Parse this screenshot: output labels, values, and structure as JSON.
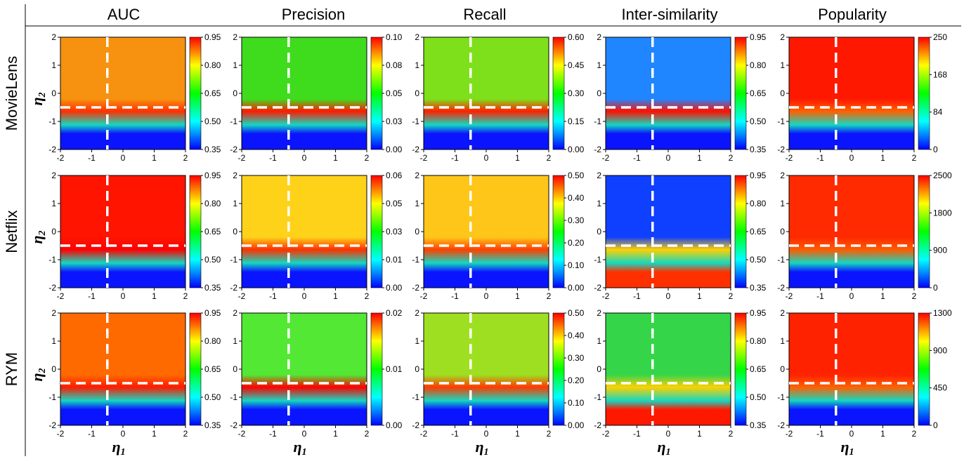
{
  "columns": [
    "AUC",
    "Precision",
    "Recall",
    "Inter-similarity",
    "Popularity"
  ],
  "rows": [
    "MovieLens",
    "Netflix",
    "RYM"
  ],
  "axes": {
    "x_label": "η",
    "x_label_sub": "1",
    "y_label": "η",
    "y_label_sub": "2",
    "ticks": [
      "-2",
      "-1",
      "0",
      "1",
      "2"
    ]
  },
  "chart_data": {
    "type": "heatmap",
    "xlim": [
      -2,
      2
    ],
    "ylim": [
      -2,
      2
    ],
    "optimal_marker": {
      "style": "white dashed crosshair",
      "eta1": -0.5,
      "eta2": -0.5
    },
    "colormap": "rainbow (blue-cyan-green-yellow-red)",
    "colorbars": [
      [
        "0.95",
        "0.80",
        "0.65",
        "0.50",
        "0.35"
      ],
      [
        "0.10",
        "0.08",
        "0.05",
        "0.03",
        "0.00"
      ],
      [
        "0.60",
        "0.45",
        "0.30",
        "0.15",
        "0.00"
      ],
      [
        "0.95",
        "0.80",
        "0.65",
        "0.50",
        "0.35"
      ],
      [
        "250",
        "168",
        "84",
        "0"
      ],
      [
        "0.95",
        "0.80",
        "0.65",
        "0.50",
        "0.35"
      ],
      [
        "0.06",
        "0.05",
        "0.03",
        "0.01",
        "0.00"
      ],
      [
        "0.50",
        "0.40",
        "0.30",
        "0.20",
        "0.10",
        "0.00"
      ],
      [
        "0.95",
        "0.80",
        "0.65",
        "0.50",
        "0.35"
      ],
      [
        "2500",
        "1800",
        "900",
        "0"
      ],
      [
        "0.95",
        "0.80",
        "0.65",
        "0.50",
        "0.35"
      ],
      [
        "0.02",
        "0.01",
        "0.00"
      ],
      [
        "0.50",
        "0.40",
        "0.30",
        "0.20",
        "0.10",
        "0.00"
      ],
      [
        "0.95",
        "0.80",
        "0.65",
        "0.50",
        "0.35"
      ],
      [
        "1300",
        "900",
        "450",
        "0"
      ]
    ]
  }
}
